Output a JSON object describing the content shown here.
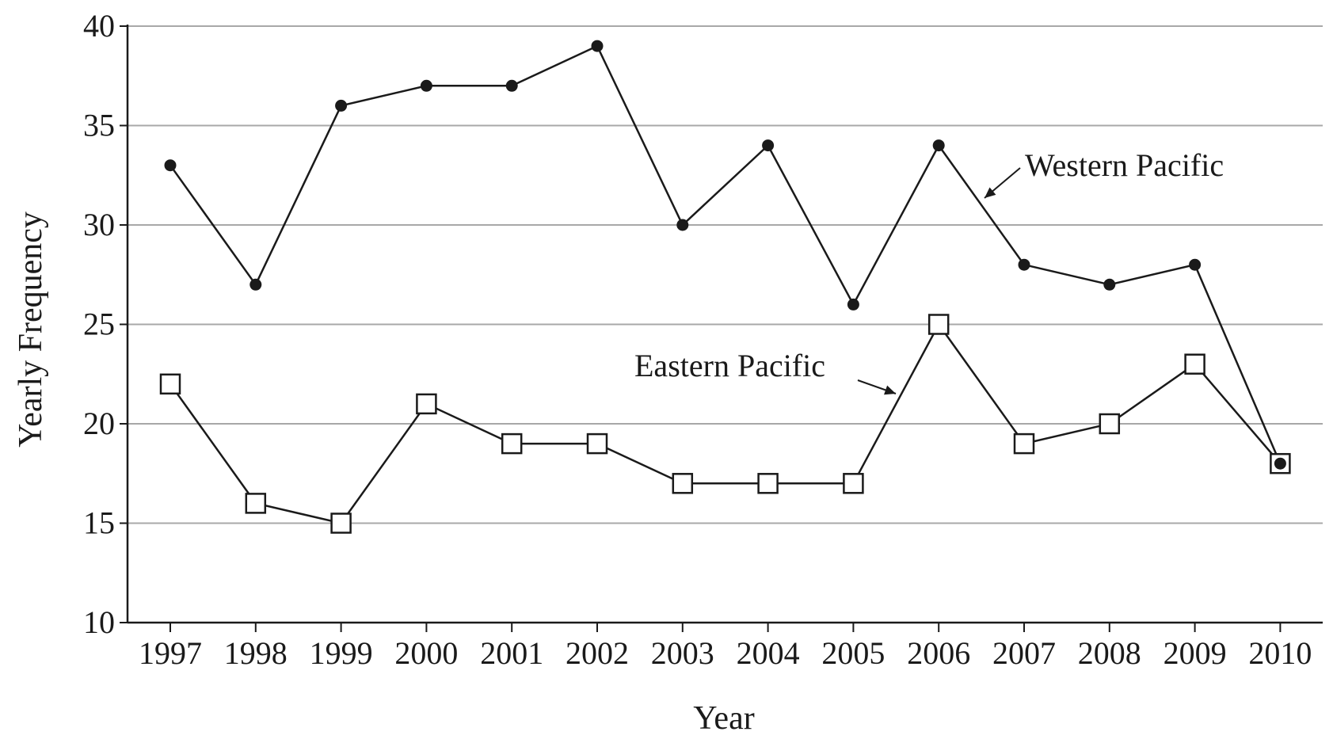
{
  "chart_data": {
    "type": "line",
    "title": "",
    "xlabel": "Year",
    "ylabel": "Yearly Frequency",
    "categories": [
      "1997",
      "1998",
      "1999",
      "2000",
      "2001",
      "2002",
      "2003",
      "2004",
      "2005",
      "2006",
      "2007",
      "2008",
      "2009",
      "2010"
    ],
    "yticks": [
      "10",
      "15",
      "20",
      "25",
      "30",
      "35",
      "40"
    ],
    "ylim": [
      10,
      40
    ],
    "grid": "horizontal",
    "legend": "none",
    "annotations": [
      "Western Pacific",
      "Eastern Pacific"
    ],
    "series": [
      {
        "name": "Western Pacific",
        "marker": "filled-circle",
        "values": [
          33,
          27,
          36,
          37,
          37,
          39,
          30,
          34,
          26,
          34,
          28,
          27,
          28,
          18
        ]
      },
      {
        "name": "Eastern Pacific",
        "marker": "open-square",
        "values": [
          22,
          16,
          15,
          21,
          19,
          19,
          17,
          17,
          17,
          25,
          19,
          20,
          23,
          18
        ]
      }
    ],
    "colors": {
      "ink": "#1a1a1a",
      "grid": "#a8a8a8",
      "background": "#ffffff"
    }
  }
}
